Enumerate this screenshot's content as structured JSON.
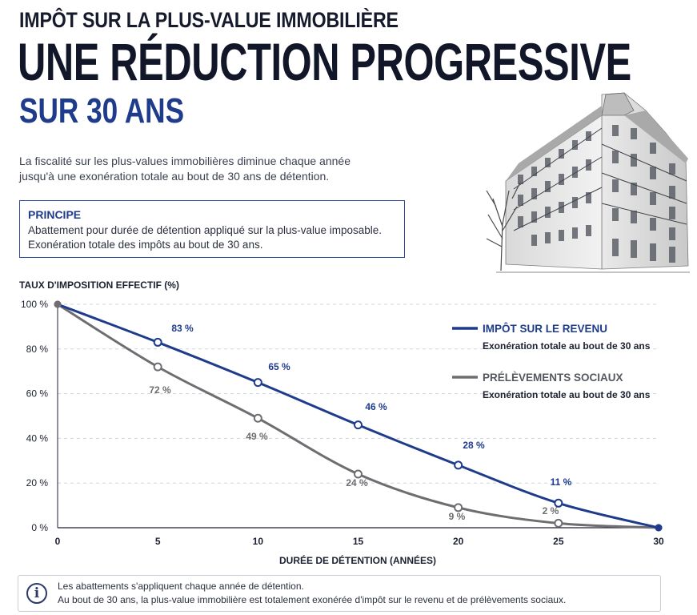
{
  "header": {
    "overline": "IMPÔT SUR LA PLUS-VALUE IMMOBILIÈRE",
    "headline": "UNE RÉDUCTION PROGRESSIVE",
    "subheadline": "SUR 30 ANS"
  },
  "intro": {
    "line1": "La fiscalité sur les plus-values immobilières diminue chaque année",
    "line2": "jusqu'à une exonération totale au bout de 30 ans de détention."
  },
  "principle": {
    "title": "PRINCIPE",
    "line1": "Abattement pour durée de détention appliqué sur la plus-value imposable.",
    "line2": "Exonération totale des impôts au bout de 30 ans."
  },
  "note": {
    "icon": "info-icon",
    "line1": "Les abattements s'appliquent chaque année de détention.",
    "line2": "Au bout de 30 ans, la plus-value immobilière est totalement exonérée d'impôt sur le revenu et de prélèvements sociaux."
  },
  "colors": {
    "primary": "#1f3b8c",
    "secondary": "#6e6e72",
    "grid": "#cfd3da"
  },
  "chart_data": {
    "type": "line",
    "ylabel": "TAUX D'IMPOSITION EFFECTIF (%)",
    "xlabel": "DURÉE DE DÉTENTION (ANNÉES)",
    "x": [
      0,
      5,
      10,
      15,
      20,
      25,
      30
    ],
    "xticks": [
      "0",
      "5",
      "10",
      "15",
      "20",
      "25",
      "30"
    ],
    "yticks": [
      "0 %",
      "20 %",
      "40 %",
      "60 %",
      "80 %",
      "100 %"
    ],
    "ylim": [
      0,
      100
    ],
    "xlim": [
      0,
      30
    ],
    "grid": true,
    "legend_position": "right",
    "series": [
      {
        "name": "IMPÔT SUR LE REVENU",
        "subtitle": "Exonération totale au bout de 30 ans",
        "color": "#1f3b8c",
        "values": [
          100,
          83,
          65,
          46,
          28,
          11,
          0
        ],
        "labels": [
          "",
          "83 %",
          "65 %",
          "46 %",
          "28 %",
          "11 %",
          ""
        ]
      },
      {
        "name": "PRÉLÈVEMENTS SOCIAUX",
        "subtitle": "Exonération totale au bout de 30 ans",
        "color": "#6e6e72",
        "values": [
          100,
          72,
          49,
          24,
          9,
          2,
          0
        ],
        "labels": [
          "",
          "72 %",
          "49 %",
          "24 %",
          "9 %",
          "2 %",
          ""
        ]
      }
    ]
  }
}
